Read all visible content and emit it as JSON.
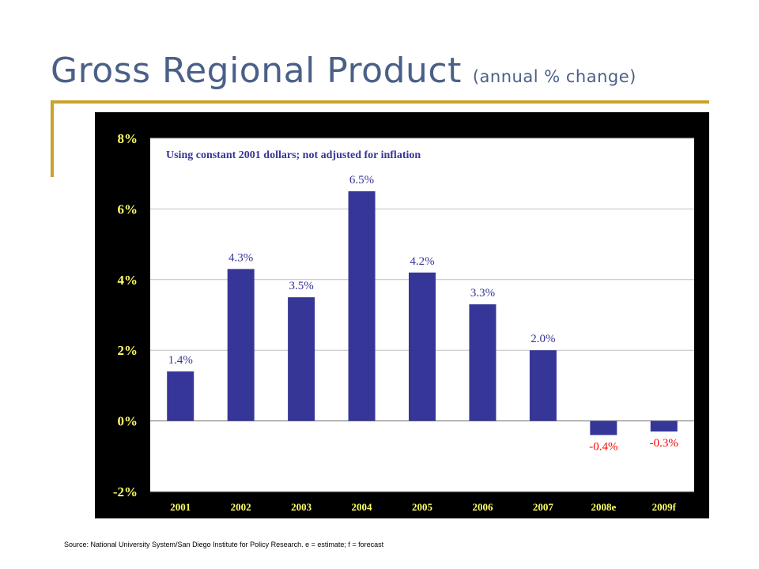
{
  "title": "Gross Regional Product",
  "subtitle": "(annual % change)",
  "source": "Source: National University System/San Diego Institute for Policy Research. e = estimate; f = forecast",
  "colors": {
    "title": "#4b6088",
    "rule": "#c9a227",
    "bar": "#363698",
    "positive_label": "#363698",
    "negative_label": "#ff0000",
    "panel_bg": "#000000",
    "plot_bg": "#ffffff",
    "axis_text": "#ffff66"
  },
  "chart_data": {
    "type": "bar",
    "annotation": "Using constant 2001 dollars; not adjusted for inflation",
    "categories": [
      "2001",
      "2002",
      "2003",
      "2004",
      "2005",
      "2006",
      "2007",
      "2008e",
      "2009f"
    ],
    "values": [
      1.4,
      4.3,
      3.5,
      6.5,
      4.2,
      3.3,
      2.0,
      -0.4,
      -0.3
    ],
    "value_labels": [
      "1.4%",
      "4.3%",
      "3.5%",
      "6.5%",
      "4.2%",
      "3.3%",
      "2.0%",
      "-0.4%",
      "-0.3%"
    ],
    "yticks": [
      8,
      6,
      4,
      2,
      0,
      -2
    ],
    "ytick_labels": [
      "8%",
      "6%",
      "4%",
      "2%",
      "0%",
      "-2%"
    ],
    "ylim": [
      -2,
      8
    ],
    "grid": true,
    "legend": "none"
  }
}
